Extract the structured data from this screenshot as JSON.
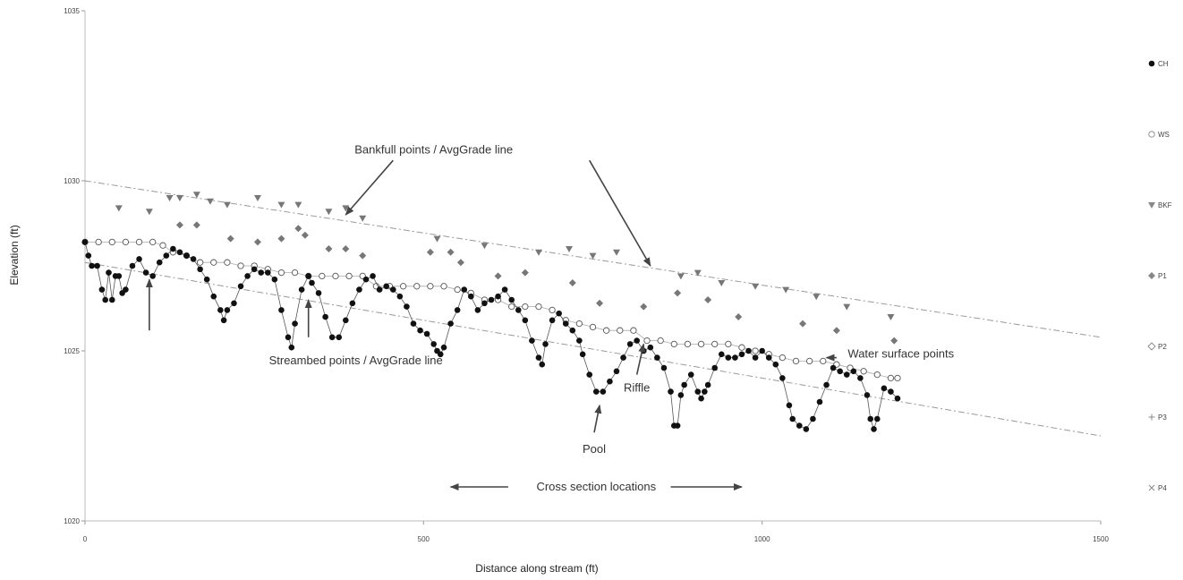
{
  "chart_data": {
    "type": "scatter",
    "xlabel": "Distance along stream (ft)",
    "ylabel": "Elevation (ft)",
    "xlim": [
      0,
      1500
    ],
    "ylim": [
      1020,
      1035
    ],
    "x_ticks": [
      "0",
      "500",
      "1000",
      "1500"
    ],
    "y_ticks": [
      "1020",
      "1025",
      "1030",
      "1035"
    ],
    "legend_position": "right",
    "series": [
      {
        "name": "CH",
        "marker": "filled-circle",
        "color": "#111111",
        "connected": true,
        "points": [
          [
            0,
            1028.2
          ],
          [
            5,
            1027.8
          ],
          [
            10,
            1027.5
          ],
          [
            18,
            1027.5
          ],
          [
            25,
            1026.8
          ],
          [
            30,
            1026.5
          ],
          [
            35,
            1027.3
          ],
          [
            40,
            1026.5
          ],
          [
            45,
            1027.2
          ],
          [
            50,
            1027.2
          ],
          [
            55,
            1026.7
          ],
          [
            60,
            1026.8
          ],
          [
            70,
            1027.5
          ],
          [
            80,
            1027.7
          ],
          [
            90,
            1027.3
          ],
          [
            100,
            1027.2
          ],
          [
            110,
            1027.6
          ],
          [
            120,
            1027.8
          ],
          [
            130,
            1028.0
          ],
          [
            140,
            1027.9
          ],
          [
            150,
            1027.8
          ],
          [
            160,
            1027.7
          ],
          [
            170,
            1027.4
          ],
          [
            180,
            1027.1
          ],
          [
            190,
            1026.6
          ],
          [
            200,
            1026.2
          ],
          [
            205,
            1025.9
          ],
          [
            210,
            1026.2
          ],
          [
            220,
            1026.4
          ],
          [
            230,
            1026.9
          ],
          [
            240,
            1027.2
          ],
          [
            250,
            1027.4
          ],
          [
            260,
            1027.3
          ],
          [
            270,
            1027.3
          ],
          [
            280,
            1027.1
          ],
          [
            290,
            1026.2
          ],
          [
            300,
            1025.4
          ],
          [
            305,
            1025.1
          ],
          [
            310,
            1025.8
          ],
          [
            320,
            1026.8
          ],
          [
            330,
            1027.2
          ],
          [
            335,
            1027.0
          ],
          [
            345,
            1026.7
          ],
          [
            355,
            1026.0
          ],
          [
            365,
            1025.4
          ],
          [
            375,
            1025.4
          ],
          [
            385,
            1025.9
          ],
          [
            395,
            1026.4
          ],
          [
            405,
            1026.8
          ],
          [
            415,
            1027.1
          ],
          [
            425,
            1027.2
          ],
          [
            435,
            1026.8
          ],
          [
            445,
            1026.9
          ],
          [
            455,
            1026.8
          ],
          [
            465,
            1026.6
          ],
          [
            475,
            1026.3
          ],
          [
            485,
            1025.8
          ],
          [
            495,
            1025.6
          ],
          [
            505,
            1025.5
          ],
          [
            515,
            1025.2
          ],
          [
            520,
            1025.0
          ],
          [
            525,
            1024.9
          ],
          [
            530,
            1025.1
          ],
          [
            540,
            1025.8
          ],
          [
            550,
            1026.2
          ],
          [
            560,
            1026.8
          ],
          [
            570,
            1026.6
          ],
          [
            580,
            1026.2
          ],
          [
            590,
            1026.4
          ],
          [
            600,
            1026.5
          ],
          [
            610,
            1026.6
          ],
          [
            620,
            1026.8
          ],
          [
            630,
            1026.5
          ],
          [
            640,
            1026.2
          ],
          [
            650,
            1025.9
          ],
          [
            660,
            1025.3
          ],
          [
            670,
            1024.8
          ],
          [
            675,
            1024.6
          ],
          [
            680,
            1025.2
          ],
          [
            690,
            1025.9
          ],
          [
            700,
            1026.1
          ],
          [
            710,
            1025.8
          ],
          [
            720,
            1025.6
          ],
          [
            730,
            1025.3
          ],
          [
            735,
            1024.9
          ],
          [
            745,
            1024.3
          ],
          [
            755,
            1023.8
          ],
          [
            765,
            1023.8
          ],
          [
            775,
            1024.1
          ],
          [
            785,
            1024.4
          ],
          [
            795,
            1024.8
          ],
          [
            805,
            1025.2
          ],
          [
            815,
            1025.3
          ],
          [
            825,
            1025.0
          ],
          [
            835,
            1025.1
          ],
          [
            845,
            1024.8
          ],
          [
            855,
            1024.5
          ],
          [
            865,
            1023.8
          ],
          [
            870,
            1022.8
          ],
          [
            875,
            1022.8
          ],
          [
            880,
            1023.7
          ],
          [
            885,
            1024.0
          ],
          [
            895,
            1024.3
          ],
          [
            905,
            1023.8
          ],
          [
            910,
            1023.6
          ],
          [
            915,
            1023.8
          ],
          [
            920,
            1024.0
          ],
          [
            930,
            1024.5
          ],
          [
            940,
            1024.9
          ],
          [
            950,
            1024.8
          ],
          [
            960,
            1024.8
          ],
          [
            970,
            1024.9
          ],
          [
            980,
            1025.0
          ],
          [
            990,
            1024.8
          ],
          [
            1000,
            1025.0
          ],
          [
            1010,
            1024.8
          ],
          [
            1020,
            1024.6
          ],
          [
            1030,
            1024.2
          ],
          [
            1040,
            1023.4
          ],
          [
            1045,
            1023.0
          ],
          [
            1055,
            1022.8
          ],
          [
            1065,
            1022.7
          ],
          [
            1075,
            1023.0
          ],
          [
            1085,
            1023.5
          ],
          [
            1095,
            1024.0
          ],
          [
            1105,
            1024.5
          ],
          [
            1115,
            1024.4
          ],
          [
            1125,
            1024.3
          ],
          [
            1135,
            1024.4
          ],
          [
            1145,
            1024.2
          ],
          [
            1155,
            1023.7
          ],
          [
            1160,
            1023.0
          ],
          [
            1165,
            1022.7
          ],
          [
            1170,
            1023.0
          ],
          [
            1180,
            1023.9
          ],
          [
            1190,
            1023.8
          ],
          [
            1200,
            1023.6
          ]
        ]
      },
      {
        "name": "WS",
        "marker": "open-circle",
        "color": "#555555",
        "connected": true,
        "points": [
          [
            0,
            1028.2
          ],
          [
            20,
            1028.2
          ],
          [
            40,
            1028.2
          ],
          [
            60,
            1028.2
          ],
          [
            80,
            1028.2
          ],
          [
            100,
            1028.2
          ],
          [
            115,
            1028.1
          ],
          [
            130,
            1027.9
          ],
          [
            150,
            1027.8
          ],
          [
            170,
            1027.6
          ],
          [
            190,
            1027.6
          ],
          [
            210,
            1027.6
          ],
          [
            230,
            1027.5
          ],
          [
            250,
            1027.5
          ],
          [
            270,
            1027.4
          ],
          [
            290,
            1027.3
          ],
          [
            310,
            1027.3
          ],
          [
            330,
            1027.2
          ],
          [
            350,
            1027.2
          ],
          [
            370,
            1027.2
          ],
          [
            390,
            1027.2
          ],
          [
            410,
            1027.2
          ],
          [
            430,
            1026.9
          ],
          [
            450,
            1026.9
          ],
          [
            470,
            1026.9
          ],
          [
            490,
            1026.9
          ],
          [
            510,
            1026.9
          ],
          [
            530,
            1026.9
          ],
          [
            550,
            1026.8
          ],
          [
            570,
            1026.7
          ],
          [
            590,
            1026.5
          ],
          [
            610,
            1026.5
          ],
          [
            630,
            1026.3
          ],
          [
            650,
            1026.3
          ],
          [
            670,
            1026.3
          ],
          [
            690,
            1026.2
          ],
          [
            710,
            1025.9
          ],
          [
            730,
            1025.8
          ],
          [
            750,
            1025.7
          ],
          [
            770,
            1025.6
          ],
          [
            790,
            1025.6
          ],
          [
            810,
            1025.6
          ],
          [
            830,
            1025.3
          ],
          [
            850,
            1025.3
          ],
          [
            870,
            1025.2
          ],
          [
            890,
            1025.2
          ],
          [
            910,
            1025.2
          ],
          [
            930,
            1025.2
          ],
          [
            950,
            1025.2
          ],
          [
            970,
            1025.1
          ],
          [
            990,
            1025.0
          ],
          [
            1010,
            1024.9
          ],
          [
            1030,
            1024.8
          ],
          [
            1050,
            1024.7
          ],
          [
            1070,
            1024.7
          ],
          [
            1090,
            1024.7
          ],
          [
            1110,
            1024.6
          ],
          [
            1130,
            1024.5
          ],
          [
            1150,
            1024.4
          ],
          [
            1170,
            1024.3
          ],
          [
            1190,
            1024.2
          ],
          [
            1200,
            1024.2
          ]
        ]
      },
      {
        "name": "BKF",
        "marker": "triangle-down",
        "color": "#777777",
        "connected": false,
        "points": [
          [
            50,
            1029.2
          ],
          [
            95,
            1029.1
          ],
          [
            125,
            1029.5
          ],
          [
            140,
            1029.5
          ],
          [
            165,
            1029.6
          ],
          [
            185,
            1029.4
          ],
          [
            210,
            1029.3
          ],
          [
            255,
            1029.5
          ],
          [
            290,
            1029.3
          ],
          [
            315,
            1029.3
          ],
          [
            360,
            1029.1
          ],
          [
            385,
            1029.2
          ],
          [
            410,
            1028.9
          ],
          [
            520,
            1028.3
          ],
          [
            590,
            1028.1
          ],
          [
            670,
            1027.9
          ],
          [
            715,
            1028.0
          ],
          [
            750,
            1027.8
          ],
          [
            785,
            1027.9
          ],
          [
            880,
            1027.2
          ],
          [
            905,
            1027.3
          ],
          [
            940,
            1027.0
          ],
          [
            990,
            1026.9
          ],
          [
            1035,
            1026.8
          ],
          [
            1080,
            1026.6
          ],
          [
            1125,
            1026.3
          ],
          [
            1190,
            1026.0
          ]
        ]
      },
      {
        "name": "P1",
        "marker": "diamond",
        "color": "#777777",
        "connected": false,
        "points": [
          [
            140,
            1028.7
          ],
          [
            165,
            1028.7
          ],
          [
            215,
            1028.3
          ],
          [
            255,
            1028.2
          ],
          [
            290,
            1028.3
          ],
          [
            315,
            1028.6
          ],
          [
            325,
            1028.4
          ],
          [
            360,
            1028.0
          ],
          [
            385,
            1028.0
          ],
          [
            410,
            1027.8
          ],
          [
            510,
            1027.9
          ],
          [
            540,
            1027.9
          ],
          [
            555,
            1027.6
          ],
          [
            610,
            1027.2
          ],
          [
            650,
            1027.3
          ],
          [
            720,
            1027.0
          ],
          [
            760,
            1026.4
          ],
          [
            825,
            1026.3
          ],
          [
            875,
            1026.7
          ],
          [
            920,
            1026.5
          ],
          [
            965,
            1026.0
          ],
          [
            1060,
            1025.8
          ],
          [
            1110,
            1025.6
          ],
          [
            1195,
            1025.3
          ]
        ]
      },
      {
        "name": "P2",
        "marker": "open-diamond",
        "color": "#777777",
        "connected": false,
        "points": []
      },
      {
        "name": "P3",
        "marker": "plus",
        "color": "#777777",
        "connected": false,
        "points": []
      },
      {
        "name": "P4",
        "marker": "cross",
        "color": "#777777",
        "connected": false,
        "points": []
      }
    ],
    "lines": [
      {
        "name": "bankfull-avggrade",
        "style": "dash-dot",
        "from": [
          0,
          1030.0
        ],
        "to": [
          1500,
          1025.4
        ]
      },
      {
        "name": "streambed-avggrade",
        "style": "dash-dot",
        "from": [
          0,
          1027.6
        ],
        "to": [
          1500,
          1022.5
        ]
      }
    ],
    "annotations": [
      {
        "text": "Bankfull points / AvgGrade line",
        "label_at": [
          515,
          1030.8
        ],
        "anchor": "middle",
        "arrows": [
          [
            [
              455,
              1030.6
            ],
            [
              385,
              1029.0
            ]
          ],
          [
            [
              745,
              1030.6
            ],
            [
              835,
              1027.5
            ]
          ]
        ]
      },
      {
        "text": "Streambed points / AvgGrade line",
        "label_at": [
          400,
          1024.6
        ],
        "anchor": "middle",
        "arrows": [
          [
            [
              95,
              1025.6
            ],
            [
              95,
              1027.1
            ]
          ],
          [
            [
              330,
              1025.4
            ],
            [
              330,
              1026.5
            ]
          ]
        ]
      },
      {
        "text": "Water surface  points",
        "label_at": [
          1205,
          1024.8
        ],
        "anchor": "middle",
        "arrows": [
          [
            [
              1110,
              1024.8
            ],
            [
              1095,
              1024.8
            ]
          ]
        ]
      },
      {
        "text": "Riffle",
        "label_at": [
          815,
          1023.8
        ],
        "anchor": "middle",
        "arrows": [
          [
            [
              815,
              1024.3
            ],
            [
              825,
              1025.2
            ]
          ]
        ]
      },
      {
        "text": "Pool",
        "label_at": [
          752,
          1022.0
        ],
        "anchor": "middle",
        "arrows": [
          [
            [
              752,
              1022.6
            ],
            [
              760,
              1023.4
            ]
          ]
        ]
      },
      {
        "text": "Cross section locations",
        "label_at": [
          755,
          1020.9
        ],
        "anchor": "middle",
        "arrows": [
          [
            [
              625,
              1021.0
            ],
            [
              540,
              1021.0
            ]
          ],
          [
            [
              865,
              1021.0
            ],
            [
              970,
              1021.0
            ]
          ]
        ]
      }
    ]
  }
}
